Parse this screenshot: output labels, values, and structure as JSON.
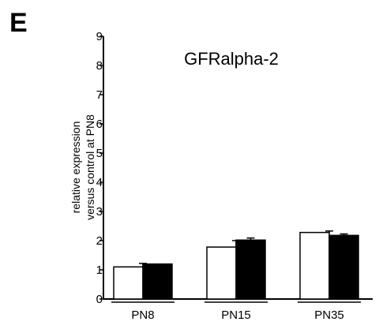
{
  "panel_label": "E",
  "chart_data": {
    "type": "bar",
    "title": "GFRalpha-2",
    "xlabel": "",
    "ylabel_lines": [
      "relative expression",
      "versus control at PN8"
    ],
    "categories": [
      "PN8",
      "PN15",
      "PN35"
    ],
    "ylim": [
      0,
      9
    ],
    "yticks": [
      0,
      1,
      2,
      3,
      4,
      5,
      6,
      7,
      8,
      9
    ],
    "grid": false,
    "legend": "none",
    "series": [
      {
        "values": [
          1.1,
          1.78,
          2.28
        ],
        "errors": [
          0.12,
          0.22,
          0.05
        ],
        "fill": "#ffffff",
        "stroke": "#000000"
      },
      {
        "values": [
          1.2,
          2.02,
          2.18
        ],
        "errors": [
          0.0,
          0.07,
          0.05
        ],
        "fill": "#000000",
        "stroke": "#000000"
      }
    ]
  }
}
